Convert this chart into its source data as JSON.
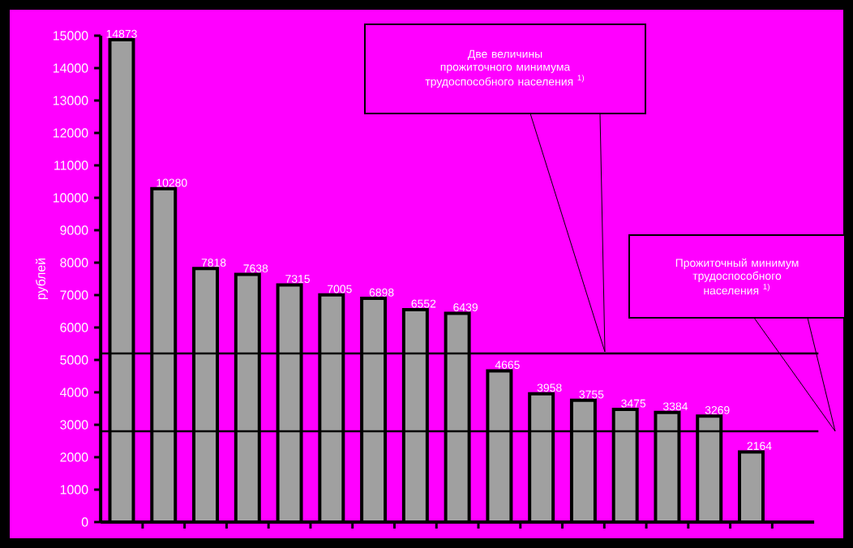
{
  "chart_data": {
    "type": "bar",
    "ylabel": "рублей",
    "categories": [
      null,
      null,
      null,
      null,
      null,
      null,
      null,
      null,
      null,
      null,
      null,
      null,
      null,
      null,
      null,
      null,
      null
    ],
    "values": [
      14873,
      10280,
      7818,
      7638,
      7315,
      7005,
      6898,
      6552,
      6439,
      4665,
      3958,
      3755,
      3475,
      3384,
      3269,
      2164,
      null
    ],
    "color": "#a0a0a0",
    "ylim": [
      0,
      15000
    ],
    "yticks": [
      0,
      1000,
      2000,
      3000,
      4000,
      5000,
      6000,
      7000,
      8000,
      9000,
      10000,
      11000,
      12000,
      13000,
      14000,
      15000
    ],
    "data_labels": true,
    "grid": false,
    "ref_lines": [
      {
        "axis": "y",
        "value": 5200,
        "color": "#000000"
      },
      {
        "axis": "y",
        "value": 2800,
        "color": "#000000"
      }
    ],
    "annotations": [
      "Две величины прожиточного минимума трудоспособного населения $^{1)}$",
      "Прожиточный минимум трудоспособного населения $^{1)}$"
    ]
  }
}
